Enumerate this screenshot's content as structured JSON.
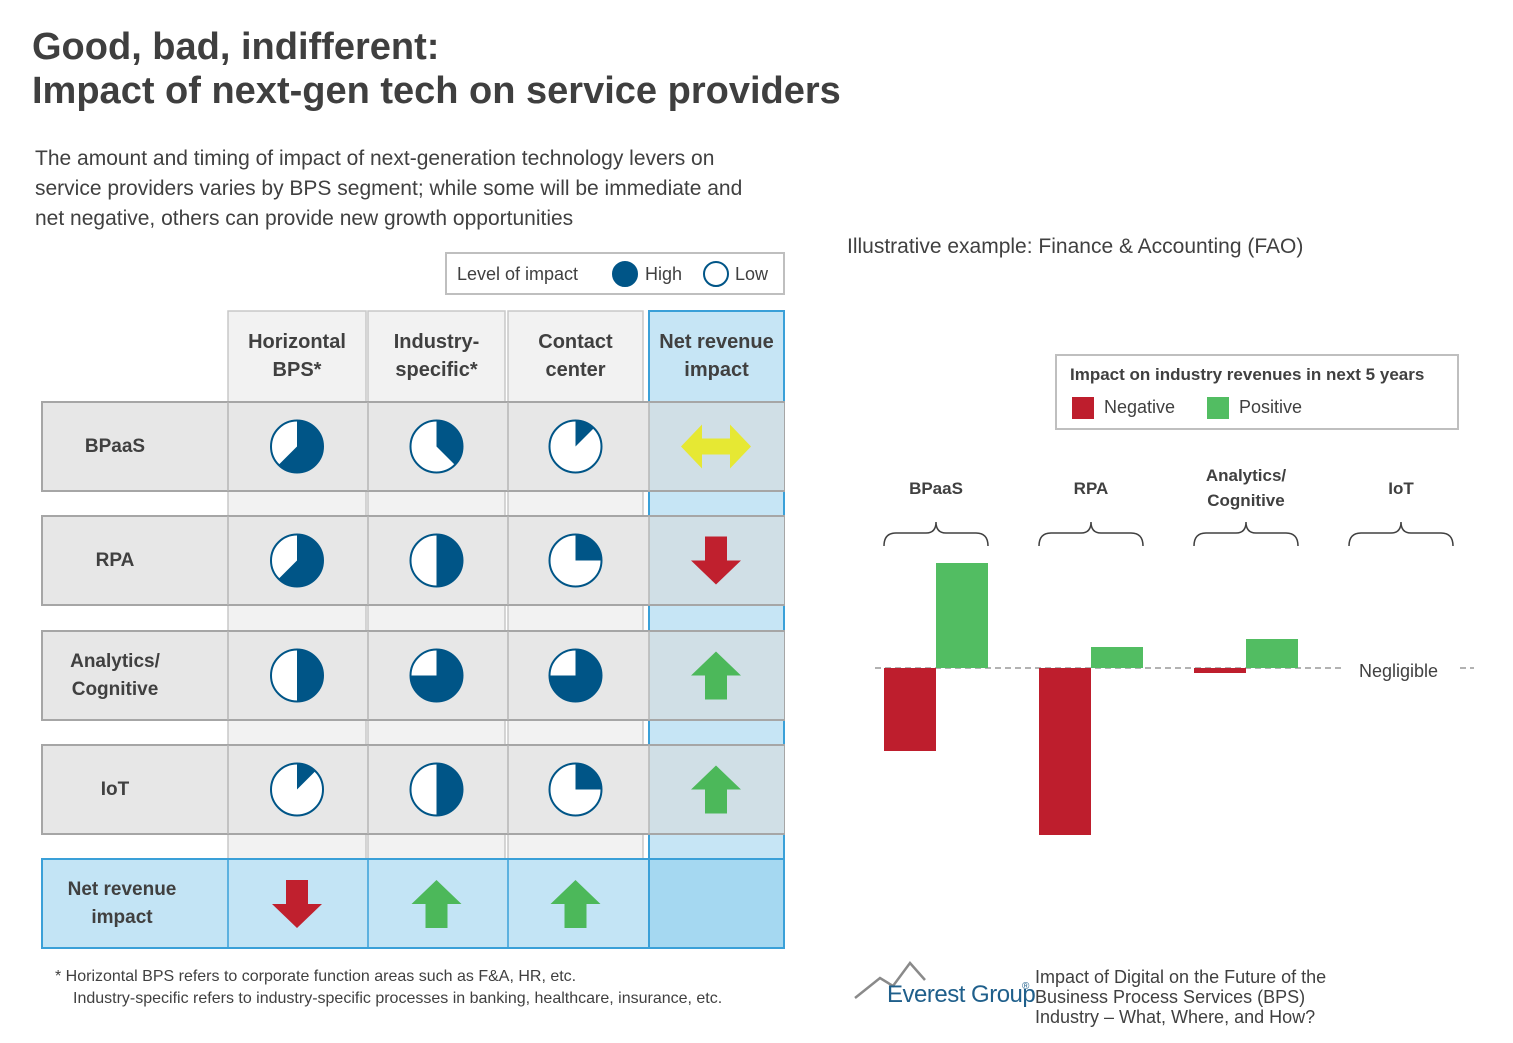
{
  "header": {
    "title": [
      "Good, bad, indifferent:",
      "Impact of next-gen tech on service providers"
    ],
    "subtitle": "The amount and timing of impact of next-generation technology levers on service providers varies by BPS segment; while some will be immediate and net negative, others can provide new growth opportunities"
  },
  "impact_legend": {
    "title": "Level of impact",
    "high": "High",
    "low": "Low",
    "color": "#005587"
  },
  "table": {
    "columns": [
      "Horizontal BPS*",
      "Industry-specific*",
      "Contact center",
      "Net revenue impact"
    ],
    "rows": [
      {
        "label": "BPaaS",
        "impact": [
          0.625,
          0.375,
          0.125
        ],
        "net": "both"
      },
      {
        "label": "RPA",
        "impact": [
          0.625,
          0.5,
          0.25
        ],
        "net": "down"
      },
      {
        "label": "Analytics/ Cognitive",
        "impact": [
          0.5,
          0.75,
          0.75
        ],
        "net": "up"
      },
      {
        "label": "IoT",
        "impact": [
          0.125,
          0.5,
          0.25
        ],
        "net": "up"
      }
    ],
    "net_row": {
      "label": "Net revenue impact",
      "net": [
        "down",
        "up",
        "up"
      ]
    },
    "arrow_colors": {
      "up": "#4cb85a",
      "down": "#c0202e",
      "both": "#e6e833"
    }
  },
  "chart_data": {
    "type": "bar",
    "title": "Illustrative example: Finance & Accounting (FAO)",
    "legend_title": "Impact on industry revenues in next 5 years",
    "categories": [
      "BPaaS",
      "RPA",
      "Analytics/ Cognitive",
      "IoT"
    ],
    "series": [
      {
        "name": "Negative",
        "color": "#be1e2d",
        "values": [
          -83,
          -167,
          -5,
          0
        ]
      },
      {
        "name": "Positive",
        "color": "#52bd62",
        "values": [
          105,
          21,
          29,
          0
        ]
      }
    ],
    "annotation": "Negligible"
  },
  "footnote": [
    "*  Horizontal BPS refers to corporate function areas such as F&A, HR, etc.",
    "Industry-specific refers to industry-specific  processes in banking, healthcare, insurance, etc."
  ],
  "source": {
    "logo": "Everest Group",
    "mark": "®",
    "text": [
      "Impact of Digital on the Future of the",
      "Business Process Services (BPS)",
      "Industry – What, Where, and How?"
    ]
  }
}
